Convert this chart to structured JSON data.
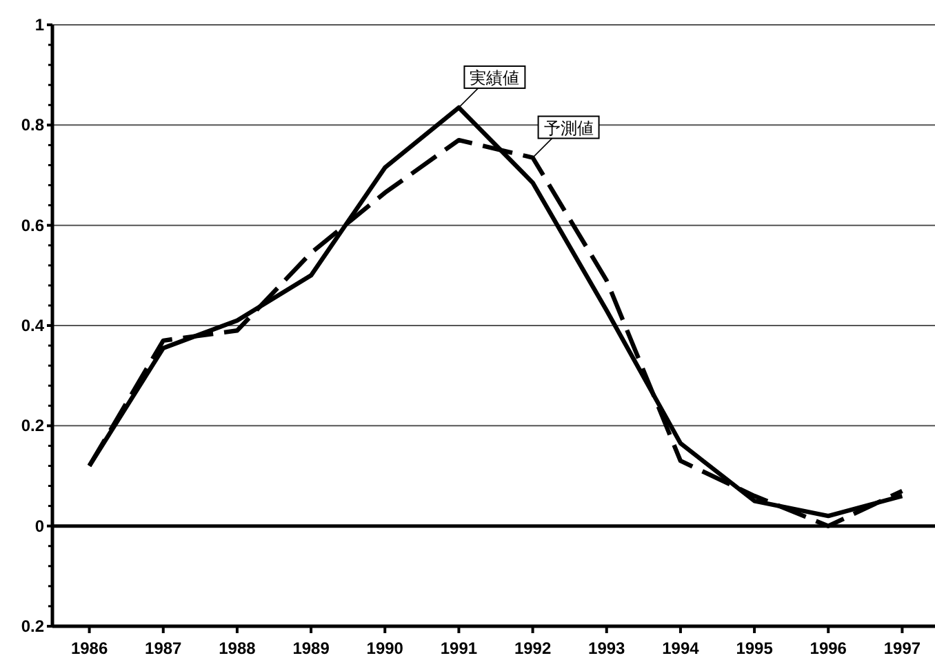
{
  "chart_data": {
    "type": "line",
    "categories": [
      "1986",
      "1987",
      "1988",
      "1989",
      "1990",
      "1991",
      "1992",
      "1993",
      "1994",
      "1995",
      "1996",
      "1997"
    ],
    "series": [
      {
        "color": "#000000",
        "line_style": "solid",
        "values": [
          0.12,
          0.355,
          0.41,
          0.5,
          0.715,
          0.835,
          0.685,
          0.43,
          0.165,
          0.05,
          0.02,
          0.06
        ]
      },
      {
        "color": "#000000",
        "line_style": "dashed",
        "values": [
          0.12,
          0.37,
          0.39,
          0.545,
          0.665,
          0.77,
          0.735,
          0.49,
          0.13,
          0.06,
          0.0,
          0.07
        ]
      }
    ],
    "ylim": [
      -0.2,
      1
    ],
    "yticks": [
      {
        "value": -0.2,
        "label": "0.2"
      },
      0,
      0.2,
      0.4,
      0.6,
      0.8,
      1
    ],
    "grid": "y",
    "ref_lines": [
      {
        "axis": "y",
        "value": 0,
        "color": "#000000"
      }
    ],
    "annotations": [
      {
        "text": "実績値",
        "x": "1991",
        "y": 0.835
      },
      {
        "text": "予測値",
        "x": "1992",
        "y": 0.735
      }
    ],
    "marker": "none"
  }
}
